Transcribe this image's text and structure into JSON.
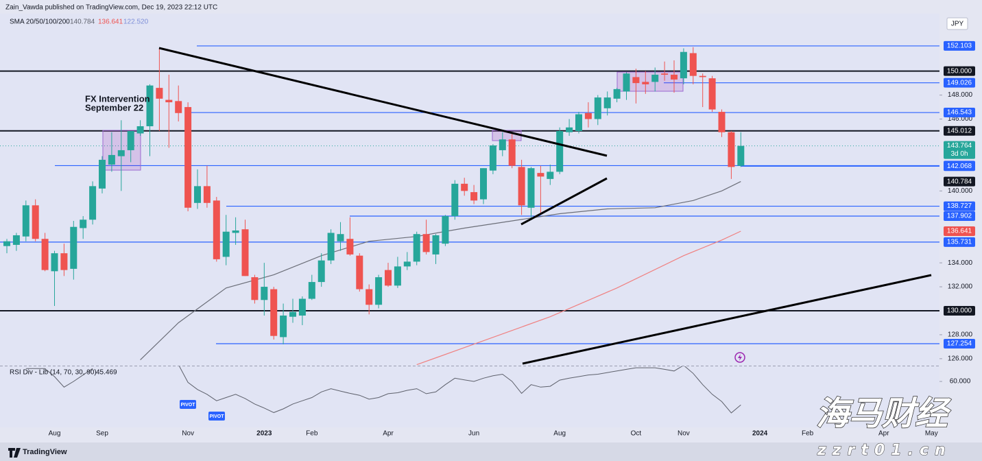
{
  "chart_data": {
    "type": "candlestick",
    "attribution": "Zain_Vawda published on TradingView.com, Dec 19, 2023 22:12 UTC",
    "indicator_label": "SMA 20/50/100/200",
    "indicator_values": [
      140.784,
      136.641,
      {
        "value": 122.52,
        "label": "122.520"
      }
    ],
    "indicator_colors": [
      "#5d606b",
      "#ef5350",
      "#7e8fd8"
    ],
    "currency": "JPY",
    "annotation": [
      "FX Intervention",
      "September 22"
    ],
    "categories": [
      null,
      null,
      null,
      null,
      null,
      "Aug",
      null,
      null,
      null,
      null,
      "Sep",
      null,
      null,
      null,
      null,
      null,
      null,
      null,
      null,
      "Nov",
      null,
      null,
      null,
      null,
      null,
      null,
      null,
      "2023",
      null,
      null,
      null,
      null,
      "Feb",
      null,
      null,
      null,
      null,
      null,
      null,
      null,
      "Apr",
      null,
      null,
      null,
      null,
      null,
      null,
      null,
      null,
      "Jun",
      null,
      null,
      null,
      null,
      null,
      null,
      null,
      null,
      "Aug",
      null,
      null,
      null,
      null,
      null,
      null,
      null,
      "Oct",
      null,
      null,
      null,
      null,
      "Nov",
      null,
      null,
      null,
      null,
      null,
      null,
      null,
      "2024",
      null,
      null,
      null,
      null,
      "Feb",
      null,
      null,
      null,
      null,
      null,
      null,
      null,
      "Apr",
      null,
      null,
      null,
      null,
      "May"
    ],
    "open": [
      135.4,
      135.5,
      136.2,
      138.8,
      136.0,
      133.3,
      134.8,
      133.5,
      136.9,
      137.6,
      140.2,
      142.2,
      142.9,
      143.4,
      144.8,
      145.4,
      148.6,
      147.6,
      147.5,
      147.0,
      139.0,
      140.4,
      139.2,
      134.5,
      136.5,
      136.8,
      132.8,
      130.9,
      131.8,
      127.8,
      129.5,
      129.6,
      131.0,
      132.4,
      134.2,
      135.8,
      136.0,
      134.6,
      131.8,
      130.5,
      133.4,
      132.1,
      133.7,
      134.1,
      136.4,
      134.7,
      135.6,
      137.9,
      140.6,
      139.9,
      139.3,
      141.7,
      143.4,
      144.3,
      142.0,
      138.6,
      141.5,
      141.0,
      141.6,
      144.9,
      145.0,
      146.5,
      146.0,
      146.9,
      147.7,
      148.3,
      149.5,
      149.1,
      149.1,
      149.8,
      149.7,
      149.4,
      151.5,
      149.6,
      149.4,
      146.6,
      144.9,
      142.1,
      null,
      null,
      null,
      null,
      null,
      null,
      null,
      null,
      null,
      null,
      null,
      null,
      null,
      null,
      null,
      null,
      null,
      null,
      null,
      null
    ],
    "high": [
      136.0,
      136.5,
      139.2,
      139.3,
      136.5,
      135.0,
      135.6,
      137.5,
      137.9,
      140.8,
      142.9,
      144.9,
      145.9,
      145.0,
      145.9,
      148.9,
      151.9,
      149.7,
      148.8,
      147.4,
      141.8,
      142.1,
      139.5,
      138.0,
      137.8,
      137.6,
      133.0,
      134.0,
      132.0,
      130.6,
      131.0,
      131.2,
      133.0,
      134.8,
      136.8,
      137.4,
      137.8,
      134.8,
      132.2,
      133.0,
      134.0,
      134.5,
      134.9,
      136.6,
      137.6,
      136.4,
      138.0,
      140.9,
      141.1,
      140.5,
      141.9,
      143.9,
      144.9,
      144.9,
      142.6,
      142.0,
      142.1,
      142.2,
      145.3,
      146.0,
      146.6,
      147.4,
      148.0,
      148.3,
      148.6,
      149.9,
      150.2,
      150.0,
      150.3,
      150.8,
      150.9,
      151.9,
      152.0,
      149.8,
      149.6,
      146.8,
      145.0,
      144.9,
      null,
      null,
      null,
      null,
      null,
      null,
      null,
      null,
      null,
      null,
      null,
      null,
      null,
      null,
      null,
      null,
      null,
      null,
      null,
      null
    ],
    "low": [
      134.8,
      135.0,
      135.8,
      135.8,
      133.3,
      130.4,
      132.9,
      132.6,
      136.0,
      137.2,
      139.8,
      141.6,
      140.0,
      142.4,
      144.6,
      142.9,
      145.0,
      143.6,
      145.8,
      138.3,
      138.5,
      138.6,
      134.1,
      133.8,
      135.5,
      132.9,
      130.6,
      129.6,
      127.6,
      127.2,
      129.0,
      128.8,
      130.9,
      132.0,
      133.9,
      135.0,
      134.6,
      131.6,
      129.7,
      130.2,
      132.0,
      131.9,
      133.4,
      133.8,
      134.7,
      133.9,
      135.4,
      137.6,
      139.6,
      138.9,
      138.9,
      141.4,
      142.9,
      141.9,
      138.0,
      137.7,
      138.0,
      140.5,
      141.4,
      144.6,
      144.8,
      145.3,
      145.5,
      146.3,
      147.4,
      147.6,
      147.3,
      148.1,
      148.3,
      149.2,
      148.2,
      148.9,
      148.9,
      147.0,
      146.6,
      144.5,
      141.0,
      142.0,
      null,
      null,
      null,
      null,
      null,
      null,
      null,
      null,
      null,
      null,
      null,
      null,
      null,
      null,
      null,
      null,
      null,
      null,
      null,
      null
    ],
    "close": [
      135.8,
      136.3,
      138.8,
      136.0,
      133.4,
      134.8,
      133.4,
      137.0,
      137.6,
      140.4,
      142.6,
      143.0,
      143.4,
      145.0,
      145.4,
      148.8,
      147.7,
      147.4,
      146.5,
      138.6,
      140.4,
      139.0,
      134.3,
      136.6,
      136.7,
      132.9,
      130.9,
      132.0,
      127.9,
      129.6,
      129.9,
      131.0,
      132.4,
      134.2,
      136.5,
      136.4,
      134.7,
      131.8,
      130.5,
      132.8,
      132.1,
      133.7,
      134.1,
      136.4,
      134.9,
      136.3,
      137.9,
      140.6,
      140.0,
      139.2,
      141.9,
      143.8,
      144.3,
      142.1,
      138.8,
      141.9,
      141.2,
      141.6,
      145.0,
      145.3,
      146.4,
      146.0,
      147.8,
      147.8,
      148.5,
      149.8,
      149.0,
      148.9,
      149.7,
      149.7,
      149.3,
      151.6,
      149.6,
      149.5,
      146.8,
      144.9,
      142.0,
      143.764,
      null,
      null,
      null,
      null,
      null,
      null,
      null,
      null,
      null,
      null,
      null,
      null,
      null,
      null,
      null,
      null,
      null,
      null,
      null,
      null
    ],
    "up_color": "#26a69a",
    "down_color": "#ef5350",
    "ylim": [
      125.42,
      154.79
    ],
    "yticks": [
      {
        "value": 126,
        "label": "126.000"
      },
      {
        "value": 128,
        "label": "128.000"
      },
      {
        "value": 132,
        "label": "132.000"
      },
      {
        "value": 134,
        "label": "134.000"
      },
      {
        "value": 140,
        "label": "140.000"
      },
      {
        "value": 146,
        "label": "146.000"
      },
      {
        "value": 148,
        "label": "148.000"
      }
    ],
    "moving_averages": [
      {
        "color": "#6b6e78",
        "x": [
          14,
          18,
          23,
          28,
          33,
          38,
          43,
          48,
          53,
          58,
          63,
          68,
          72,
          75,
          77
        ],
        "values": [
          125.9,
          129.0,
          131.9,
          133.0,
          134.6,
          135.8,
          136.2,
          136.9,
          137.5,
          138.1,
          138.5,
          138.6,
          139.2,
          140.0,
          140.784
        ]
      },
      {
        "color": "#f08080",
        "x": [
          43,
          50,
          57,
          64,
          71,
          75,
          77
        ],
        "values": [
          125.5,
          127.5,
          129.5,
          131.9,
          134.6,
          135.9,
          136.641
        ]
      }
    ],
    "levels": [
      {
        "value": 152.103,
        "color": "#2962ff"
      },
      {
        "value": {
          "value": 150,
          "label": "150.000"
        },
        "color": "#131722"
      },
      {
        "value": 149.026,
        "color": "#2962ff"
      },
      {
        "value": 146.543,
        "color": "#2962ff"
      },
      {
        "value": 145.012,
        "color": "#131722"
      },
      {
        "value": 142.113,
        "color": "#2962ff"
      },
      {
        "value": 142.068,
        "color": "#2962ff"
      },
      {
        "value": 138.727,
        "color": "#2962ff"
      },
      {
        "value": 137.902,
        "color": "#2962ff"
      },
      {
        "value": 135.731,
        "color": "#2962ff"
      },
      {
        "value": {
          "value": 130,
          "label": "130.000"
        },
        "color": "#131722"
      },
      {
        "value": 127.254,
        "color": "#2962ff"
      }
    ],
    "current_price": {
      "value": 143.764,
      "countdown": "3d 0h",
      "color": "#26a69a"
    },
    "rsi": {
      "label": "RSI Div - Lib (14, 70, 30, 90)",
      "value": 45.469,
      "color": "#5d606b",
      "ylim": [
        31.5,
        69.8
      ],
      "yticks": [
        {
          "value": 60,
          "label": "60.000"
        }
      ],
      "x": [
        2,
        4,
        5,
        6,
        7,
        8,
        9,
        13,
        18,
        19,
        20,
        21,
        22,
        23,
        24,
        25,
        26,
        27,
        28,
        29,
        30,
        31,
        32,
        33,
        34,
        35,
        36,
        37,
        38,
        39,
        40,
        41,
        42,
        43,
        44,
        45,
        46,
        47,
        48,
        49,
        50,
        51,
        52,
        53,
        54,
        55,
        56,
        57,
        58,
        59,
        60,
        61,
        62,
        63,
        64,
        65,
        66,
        67,
        68,
        69,
        70,
        71,
        72,
        73,
        74,
        75,
        76,
        77
      ],
      "values": [
        68,
        68,
        63,
        56.5,
        60,
        64,
        68,
        null,
        70.5,
        59.4,
        55,
        52,
        48,
        50,
        52,
        49.4,
        46,
        43.5,
        40.7,
        43,
        46,
        48,
        50,
        53.5,
        55.5,
        54,
        52.6,
        51.4,
        49,
        50,
        52.4,
        53,
        54.5,
        55.5,
        52.4,
        53.5,
        58,
        62,
        61,
        60,
        62,
        63.5,
        64.5,
        60,
        52.6,
        58,
        56.5,
        57,
        60.8,
        62,
        63,
        64,
        64.5,
        65.5,
        66.5,
        67.5,
        68.5,
        68.5,
        68.5,
        67.5,
        66.5,
        70,
        65,
        58,
        52,
        47.5,
        40.5,
        45.469
      ],
      "pivots": [
        "PIVOT",
        "PIVOT"
      ]
    },
    "watermark": {
      "title": "海马财经",
      "url": "zzrt01.cn"
    },
    "footer": "TradingView"
  }
}
